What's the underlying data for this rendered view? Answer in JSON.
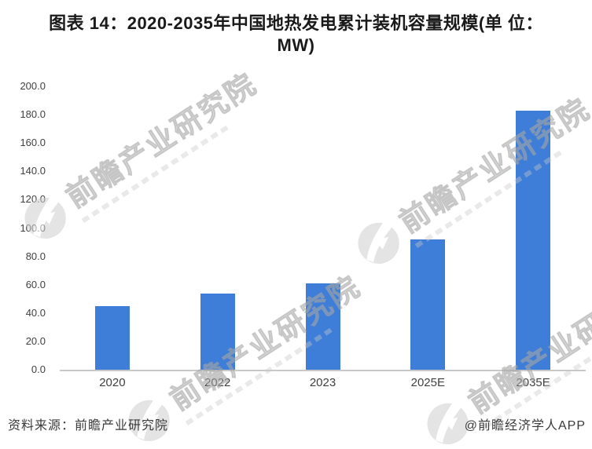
{
  "title": {
    "line1": "图表 14：2020-2035年中国地热发电累计装机容量规模(单 位：",
    "line2": "MW)"
  },
  "chart_data": {
    "type": "bar",
    "title": "图表 14：2020-2035年中国地热发电累计装机容量规模(单位：MW)",
    "categories": [
      "2020",
      "2022",
      "2023",
      "2025E",
      "2035E"
    ],
    "values": [
      45,
      54,
      61,
      92,
      183
    ],
    "unit": "MW",
    "xlabel": "",
    "ylabel": "",
    "ylim": [
      0,
      200
    ],
    "y_ticks": [
      "200.0",
      "180.0",
      "160.0",
      "140.0",
      "120.0",
      "100.0",
      "80.0",
      "60.0",
      "40.0",
      "20.0",
      "0.0"
    ],
    "bar_color": "#3e7ed8",
    "grid": false,
    "legend": false
  },
  "watermark": {
    "text": "前瞻产业研究院",
    "logo": "qianzhan-logo"
  },
  "footer": {
    "source": "资料来源：前瞻产业研究院",
    "credit": "@前瞻经济学人APP"
  }
}
